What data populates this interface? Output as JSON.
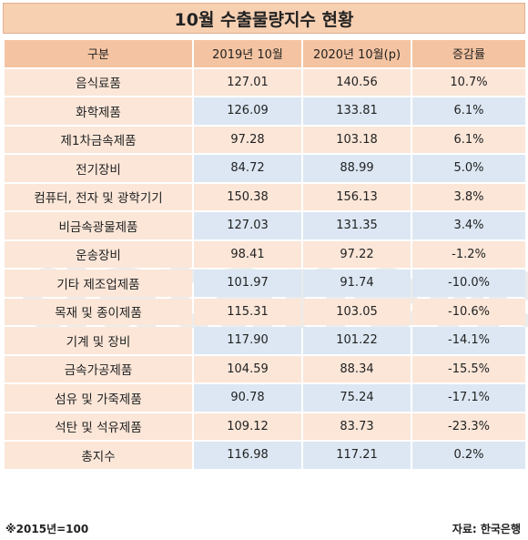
{
  "title": "10월 수출물량지수 현황",
  "headers": [
    "구분",
    "2019년 10월",
    "2020년 10월(p)",
    "증감률"
  ],
  "rows": [
    [
      "음식료품",
      "127.01",
      "140.56",
      "10.7%"
    ],
    [
      "화학제품",
      "126.09",
      "133.81",
      "6.1%"
    ],
    [
      "제1차금속제품",
      "97.28",
      "103.18",
      "6.1%"
    ],
    [
      "전기장비",
      "84.72",
      "88.99",
      "5.0%"
    ],
    [
      "컴퓨터, 전자 및 광학기기",
      "150.38",
      "156.13",
      "3.8%"
    ],
    [
      "비금속광물제품",
      "127.03",
      "131.35",
      "3.4%"
    ],
    [
      "운송장비",
      "98.41",
      "97.22",
      "-1.2%"
    ],
    [
      "기타 제조업제품",
      "101.97",
      "91.74",
      "-10.0%"
    ],
    [
      "목재 및 종이제품",
      "115.31",
      "103.05",
      "-10.6%"
    ],
    [
      "기계 및 장비",
      "117.90",
      "101.22",
      "-14.1%"
    ],
    [
      "금속가공제품",
      "104.59",
      "88.34",
      "-15.5%"
    ],
    [
      "섬유 및 가죽제품",
      "90.78",
      "75.24",
      "-17.1%"
    ],
    [
      "석탄 및 석유제품",
      "109.12",
      "83.73",
      "-23.3%"
    ],
    [
      "총지수",
      "116.98",
      "117.21",
      "0.2%"
    ]
  ],
  "footnote": "※2015년=100",
  "source": "자료: 한국은행",
  "watermark": "datanews",
  "colors": {
    "title_bg": "#f7d0b2",
    "header_bg": "#f4c4a2",
    "row_peach": "#fbe6d8",
    "row_blue": "#dce7f3"
  }
}
